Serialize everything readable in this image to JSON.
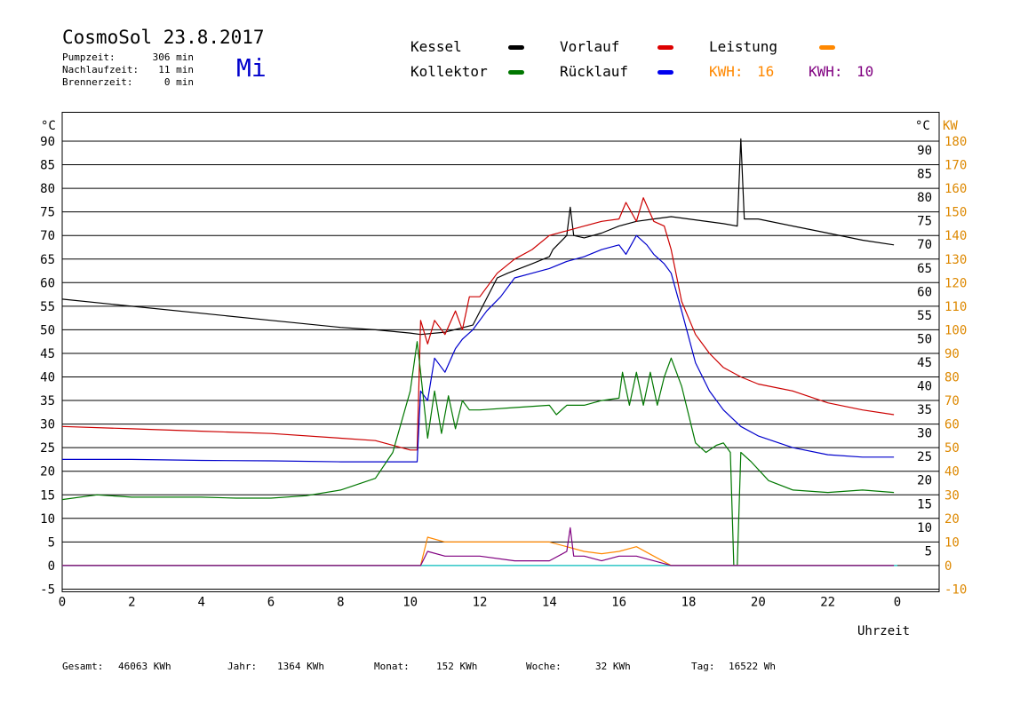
{
  "header": {
    "title": "CosmoSol 23.8.2017",
    "day": "Mi",
    "stats": [
      {
        "label": "Pumpzeit:",
        "value": "306 min"
      },
      {
        "label": "Nachlaufzeit:",
        "value": "11 min"
      },
      {
        "label": "Brennerzeit:",
        "value": "0 min"
      }
    ]
  },
  "legend": {
    "kessel": "Kessel",
    "vorlauf": "Vorlauf",
    "leistung": "Leistung",
    "kollektor": "Kollektor",
    "ruecklauf": "Rücklauf",
    "kwh1_label": "KWH:",
    "kwh1_value": "16",
    "kwh2_label": "KWH:",
    "kwh2_value": "10"
  },
  "colors": {
    "kessel": "#000000",
    "vorlauf": "#cc0000",
    "ruecklauf": "#0000cc",
    "kollektor": "#007700",
    "leistung": "#ff8800",
    "leistung2": "#800080",
    "zero": "#33cccc",
    "kw_axis": "#dd8800"
  },
  "footer": {
    "gesamt_label": "Gesamt:",
    "gesamt_value": "46063 KWh",
    "jahr_label": "Jahr:",
    "jahr_value": "1364 KWh",
    "monat_label": "Monat:",
    "monat_value": "152 KWh",
    "woche_label": "Woche:",
    "woche_value": "32 KWh",
    "tag_label": "Tag:",
    "tag_value": "16522 Wh"
  },
  "chart_data": {
    "type": "line",
    "xlabel": "Uhrzeit",
    "ylabel_left": "°C",
    "ylabel_right_1": "°C",
    "ylabel_right_2": "KW",
    "xlim": [
      0,
      24
    ],
    "ylim": [
      -5,
      95
    ],
    "x_tick_labels": [
      "0",
      "2",
      "4",
      "6",
      "8",
      "10",
      "12",
      "14",
      "16",
      "18",
      "20",
      "22",
      "0"
    ],
    "y_ticks": [
      -5,
      0,
      5,
      10,
      15,
      20,
      25,
      30,
      35,
      40,
      45,
      50,
      55,
      60,
      65,
      70,
      75,
      80,
      85,
      90
    ],
    "y_ticks_right": [
      5,
      10,
      15,
      20,
      25,
      30,
      35,
      40,
      45,
      50,
      55,
      60,
      65,
      70,
      75,
      80,
      85,
      90
    ],
    "kw_ticks": [
      -10,
      0,
      10,
      20,
      30,
      40,
      50,
      60,
      70,
      80,
      90,
      100,
      110,
      120,
      130,
      140,
      150,
      160,
      170,
      180
    ],
    "grid": true,
    "series": [
      {
        "name": "Kessel",
        "color": "#000000",
        "points": [
          [
            0,
            56.5
          ],
          [
            2,
            55
          ],
          [
            4,
            53.5
          ],
          [
            6,
            52
          ],
          [
            8,
            50.5
          ],
          [
            9,
            50
          ],
          [
            10,
            49.3
          ],
          [
            10.3,
            49
          ],
          [
            11,
            49.5
          ],
          [
            11.8,
            51
          ],
          [
            12.5,
            61
          ],
          [
            12.8,
            62
          ],
          [
            13.5,
            64
          ],
          [
            14,
            65.5
          ],
          [
            14.1,
            67
          ],
          [
            14.5,
            70
          ],
          [
            14.6,
            76
          ],
          [
            14.7,
            70
          ],
          [
            15,
            69.5
          ],
          [
            15.5,
            70.5
          ],
          [
            16,
            72
          ],
          [
            16.5,
            73
          ],
          [
            17,
            73.5
          ],
          [
            17.5,
            74
          ],
          [
            18,
            73.5
          ],
          [
            19,
            72.5
          ],
          [
            19.4,
            72
          ],
          [
            19.5,
            90.5
          ],
          [
            19.6,
            73.5
          ],
          [
            20,
            73.5
          ],
          [
            21,
            72
          ],
          [
            22,
            70.5
          ],
          [
            23,
            69
          ],
          [
            23.9,
            68
          ]
        ]
      },
      {
        "name": "Vorlauf",
        "color": "#cc0000",
        "points": [
          [
            0,
            29.5
          ],
          [
            2,
            29
          ],
          [
            4,
            28.5
          ],
          [
            6,
            28
          ],
          [
            8,
            27
          ],
          [
            9,
            26.5
          ],
          [
            10,
            24.5
          ],
          [
            10.2,
            24.5
          ],
          [
            10.3,
            52
          ],
          [
            10.5,
            47
          ],
          [
            10.7,
            52
          ],
          [
            11,
            49
          ],
          [
            11.3,
            54
          ],
          [
            11.5,
            50
          ],
          [
            11.7,
            57
          ],
          [
            12,
            57
          ],
          [
            12.5,
            62
          ],
          [
            13,
            65
          ],
          [
            13.5,
            67
          ],
          [
            14,
            70
          ],
          [
            14.5,
            71
          ],
          [
            15,
            72
          ],
          [
            15.5,
            73
          ],
          [
            16,
            73.5
          ],
          [
            16.2,
            77
          ],
          [
            16.5,
            73
          ],
          [
            16.7,
            78
          ],
          [
            17,
            73
          ],
          [
            17.3,
            72
          ],
          [
            17.5,
            67
          ],
          [
            17.8,
            56
          ],
          [
            18.2,
            49
          ],
          [
            18.6,
            45
          ],
          [
            19,
            42
          ],
          [
            19.5,
            40
          ],
          [
            20,
            38.5
          ],
          [
            21,
            37
          ],
          [
            22,
            34.5
          ],
          [
            23,
            33
          ],
          [
            23.9,
            32
          ]
        ]
      },
      {
        "name": "Rücklauf",
        "color": "#0000cc",
        "points": [
          [
            0,
            22.5
          ],
          [
            2,
            22.5
          ],
          [
            4,
            22.3
          ],
          [
            6,
            22.2
          ],
          [
            8,
            22
          ],
          [
            10.1,
            22
          ],
          [
            10.2,
            22
          ],
          [
            10.3,
            37
          ],
          [
            10.5,
            35
          ],
          [
            10.7,
            44
          ],
          [
            11,
            41
          ],
          [
            11.3,
            46
          ],
          [
            11.5,
            48
          ],
          [
            11.8,
            50
          ],
          [
            12.2,
            54
          ],
          [
            12.6,
            57
          ],
          [
            13,
            61
          ],
          [
            13.5,
            62
          ],
          [
            14,
            63
          ],
          [
            14.5,
            64.5
          ],
          [
            15,
            65.5
          ],
          [
            15.5,
            67
          ],
          [
            16,
            68
          ],
          [
            16.2,
            66
          ],
          [
            16.5,
            70
          ],
          [
            16.8,
            68
          ],
          [
            17,
            66
          ],
          [
            17.3,
            64
          ],
          [
            17.5,
            62
          ],
          [
            17.8,
            54
          ],
          [
            18.2,
            43
          ],
          [
            18.6,
            37
          ],
          [
            19,
            33
          ],
          [
            19.5,
            29.5
          ],
          [
            20,
            27.5
          ],
          [
            21,
            25
          ],
          [
            22,
            23.5
          ],
          [
            23,
            23
          ],
          [
            23.9,
            23
          ]
        ]
      },
      {
        "name": "Kollektor",
        "color": "#007700",
        "points": [
          [
            0,
            14
          ],
          [
            1,
            15
          ],
          [
            2,
            14.5
          ],
          [
            3,
            14.5
          ],
          [
            4,
            14.5
          ],
          [
            5,
            14.3
          ],
          [
            6,
            14.3
          ],
          [
            7,
            14.8
          ],
          [
            8,
            16
          ],
          [
            9,
            18.5
          ],
          [
            9.5,
            24
          ],
          [
            10,
            37
          ],
          [
            10.2,
            47.5
          ],
          [
            10.3,
            41
          ],
          [
            10.5,
            27
          ],
          [
            10.7,
            37
          ],
          [
            10.9,
            28
          ],
          [
            11.1,
            36
          ],
          [
            11.3,
            29
          ],
          [
            11.5,
            35
          ],
          [
            11.7,
            33
          ],
          [
            12,
            33
          ],
          [
            13,
            33.5
          ],
          [
            14,
            34
          ],
          [
            14.2,
            32
          ],
          [
            14.5,
            34
          ],
          [
            15,
            34
          ],
          [
            15.5,
            35
          ],
          [
            16,
            35.5
          ],
          [
            16.1,
            41
          ],
          [
            16.3,
            34
          ],
          [
            16.5,
            41
          ],
          [
            16.7,
            34
          ],
          [
            16.9,
            41
          ],
          [
            17.1,
            34
          ],
          [
            17.3,
            40
          ],
          [
            17.5,
            44
          ],
          [
            17.8,
            38
          ],
          [
            18.2,
            26
          ],
          [
            18.5,
            24
          ],
          [
            18.8,
            25.5
          ],
          [
            19,
            26
          ],
          [
            19.2,
            24
          ],
          [
            19.3,
            0
          ],
          [
            19.4,
            0
          ],
          [
            19.5,
            24
          ],
          [
            19.8,
            22
          ],
          [
            20.3,
            18
          ],
          [
            21,
            16
          ],
          [
            22,
            15.5
          ],
          [
            23,
            16
          ],
          [
            23.9,
            15.5
          ]
        ]
      },
      {
        "name": "Leistung",
        "color": "#ff8800",
        "axis": "kw",
        "points": [
          [
            0,
            0
          ],
          [
            10.3,
            0
          ],
          [
            10.5,
            6
          ],
          [
            11,
            5
          ],
          [
            11.5,
            5
          ],
          [
            12,
            5
          ],
          [
            13,
            5
          ],
          [
            14,
            5
          ],
          [
            14.5,
            4
          ],
          [
            15,
            3
          ],
          [
            15.5,
            2.5
          ],
          [
            16,
            3
          ],
          [
            16.5,
            4
          ],
          [
            17,
            2
          ],
          [
            17.5,
            0
          ],
          [
            23.9,
            0
          ]
        ]
      },
      {
        "name": "Leistung2",
        "color": "#800080",
        "axis": "kw",
        "points": [
          [
            0,
            0
          ],
          [
            10.3,
            0
          ],
          [
            10.5,
            3
          ],
          [
            11,
            2
          ],
          [
            11.5,
            2
          ],
          [
            12,
            2
          ],
          [
            13,
            1
          ],
          [
            14,
            1
          ],
          [
            14.5,
            3
          ],
          [
            14.6,
            8
          ],
          [
            14.7,
            2
          ],
          [
            15,
            2
          ],
          [
            15.5,
            1
          ],
          [
            16,
            2
          ],
          [
            16.5,
            2
          ],
          [
            17,
            1
          ],
          [
            17.5,
            0
          ],
          [
            23.9,
            0
          ]
        ]
      }
    ]
  }
}
